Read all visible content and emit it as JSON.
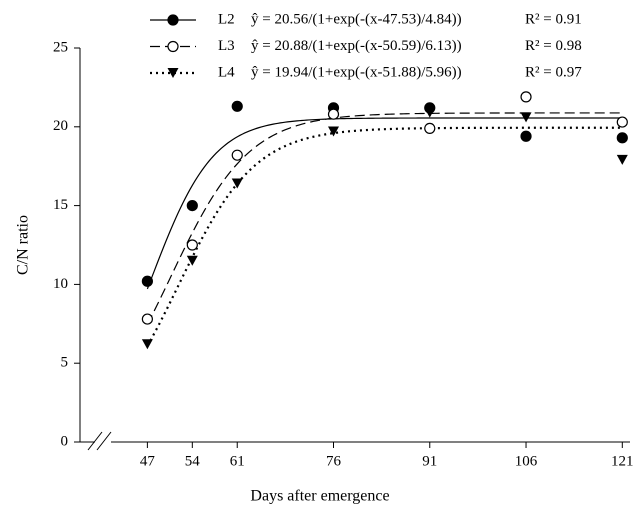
{
  "chart_data": {
    "type": "scatter",
    "xlabel": "Days after emergence",
    "ylabel": "C/N ratio",
    "x": [
      47,
      54,
      61,
      76,
      91,
      106,
      121
    ],
    "xlim": [
      36.5,
      122.2
    ],
    "xticks": [
      47,
      54,
      61,
      76,
      91,
      106,
      121
    ],
    "ylim": [
      0,
      25
    ],
    "yticks": [
      0,
      5,
      10,
      15,
      20,
      25
    ],
    "series": [
      {
        "name": "L2",
        "color": "#000000",
        "marker": "filled-circle",
        "line_style": "solid",
        "equation": "ŷ = 20.56/(1+exp(-(x-47.53)/4.84))",
        "r2": "R² = 0.91",
        "fit": {
          "a": 20.56,
          "x0": 47.53,
          "b": 4.84
        },
        "values": [
          10.2,
          15.0,
          21.3,
          21.2,
          21.2,
          19.4,
          19.3
        ]
      },
      {
        "name": "L3",
        "color": "#000000",
        "marker": "open-circle",
        "line_style": "dashed",
        "equation": "ŷ = 20.88/(1+exp(-(x-50.59)/6.13))",
        "r2": "R² = 0.98",
        "fit": {
          "a": 20.88,
          "x0": 50.59,
          "b": 6.13
        },
        "values": [
          7.8,
          12.5,
          18.2,
          20.8,
          19.9,
          21.9,
          20.3
        ]
      },
      {
        "name": "L4",
        "color": "#000000",
        "marker": "triangle",
        "line_style": "dotted",
        "equation": "ŷ = 19.94/(1+exp(-(x-51.88)/5.96))",
        "r2": "R² = 0.97",
        "fit": {
          "a": 19.94,
          "x0": 51.88,
          "b": 5.96
        },
        "values": [
          6.2,
          11.5,
          16.4,
          19.7,
          20.9,
          20.6,
          17.9
        ]
      }
    ]
  }
}
